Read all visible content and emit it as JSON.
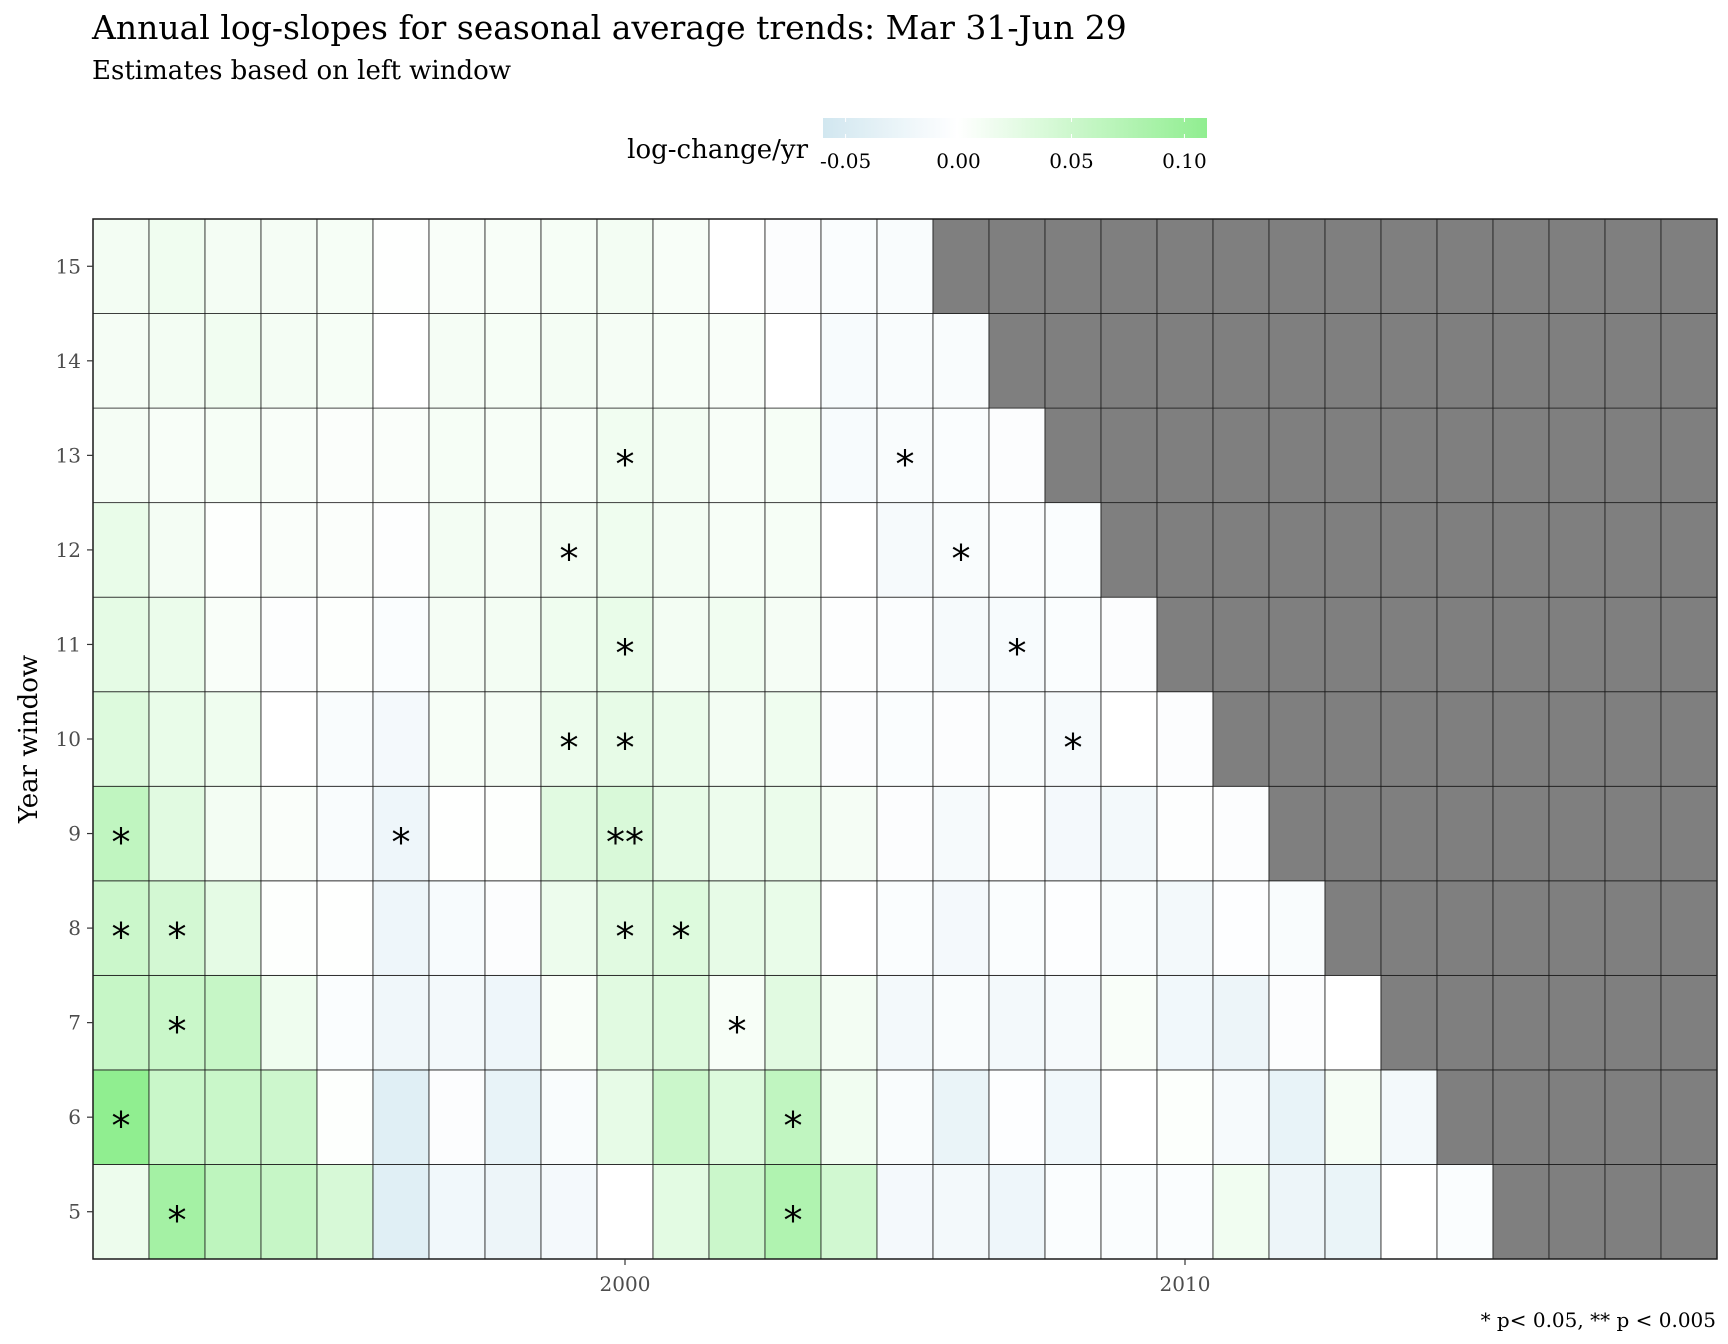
{
  "title": "Annual log-slopes for seasonal average trends: Mar 31-Jun 29",
  "subtitle": "Estimates based on left window",
  "caption": "* p< 0.05, ** p < 0.005",
  "colors": {
    "negative": "#d1e7f0",
    "zero": "#ffffff",
    "positive": "#90ee90",
    "na": "#7f7f7f",
    "grid": "#1a1a1a"
  },
  "chart_data": {
    "type": "heatmap",
    "title": "Annual log-slopes for seasonal average trends: Mar 31-Jun 29",
    "subtitle": "Estimates based on left window",
    "xlabel": "",
    "ylabel": "Year window",
    "legend": {
      "title": "log-change/yr",
      "position": "top",
      "range": [
        -0.06,
        0.11
      ],
      "ticks": [
        -0.05,
        0.0,
        0.05,
        0.1
      ],
      "tick_labels": [
        "-0.05",
        "0.00",
        "0.05",
        "0.10"
      ]
    },
    "x_range": [
      1991,
      2019
    ],
    "x_ticks": [
      2000,
      2010
    ],
    "x_tick_labels": [
      "2000",
      "2010"
    ],
    "y_windows": [
      5,
      6,
      7,
      8,
      9,
      10,
      11,
      12,
      13,
      14,
      15
    ],
    "y_tick_labels": [
      "5",
      "6",
      "7",
      "8",
      "9",
      "10",
      "11",
      "12",
      "13",
      "14",
      "15"
    ],
    "years": [
      1991,
      1992,
      1993,
      1994,
      1995,
      1996,
      1997,
      1998,
      1999,
      2000,
      2001,
      2002,
      2003,
      2004,
      2005,
      2006,
      2007,
      2008,
      2009,
      2010,
      2011,
      2012,
      2013,
      2014,
      2015,
      2016,
      2017,
      2018,
      2019
    ],
    "values": {
      "15": [
        0.012,
        0.015,
        0.011,
        0.01,
        0.009,
        0.001,
        0.006,
        0.007,
        0.009,
        0.012,
        0.007,
        0.0,
        -0.004,
        -0.006,
        -0.008,
        null,
        null,
        null,
        null,
        null,
        null,
        null,
        null,
        null,
        null,
        null,
        null,
        null,
        null
      ],
      "14": [
        0.01,
        0.012,
        0.014,
        0.011,
        0.009,
        0.0,
        0.01,
        0.009,
        0.011,
        0.01,
        0.008,
        0.006,
        0.0,
        -0.01,
        -0.008,
        -0.008,
        null,
        null,
        null,
        null,
        null,
        null,
        null,
        null,
        null,
        null,
        null,
        null,
        null
      ],
      "13": [
        0.01,
        0.007,
        0.009,
        0.006,
        0.004,
        0.005,
        0.009,
        0.008,
        0.008,
        0.014,
        0.012,
        0.007,
        0.009,
        -0.01,
        -0.008,
        -0.006,
        -0.004,
        null,
        null,
        null,
        null,
        null,
        null,
        null,
        null,
        null,
        null,
        null,
        null
      ],
      "12": [
        0.022,
        0.011,
        0.002,
        0.005,
        0.004,
        -0.003,
        0.012,
        0.01,
        0.012,
        0.016,
        0.012,
        0.008,
        0.009,
        0.0,
        -0.012,
        -0.008,
        -0.005,
        -0.006,
        null,
        null,
        null,
        null,
        null,
        null,
        null,
        null,
        null,
        null,
        null
      ],
      "11": [
        0.026,
        0.02,
        0.006,
        -0.003,
        0.002,
        -0.006,
        0.01,
        0.012,
        0.016,
        0.022,
        0.012,
        0.014,
        0.01,
        -0.003,
        -0.005,
        -0.012,
        -0.01,
        -0.006,
        -0.004,
        null,
        null,
        null,
        null,
        null,
        null,
        null,
        null,
        null,
        null
      ],
      "10": [
        0.034,
        0.022,
        0.016,
        0.0,
        -0.008,
        -0.014,
        0.008,
        0.01,
        0.018,
        0.024,
        0.02,
        0.012,
        0.016,
        -0.004,
        -0.006,
        -0.004,
        -0.008,
        -0.012,
        0.0,
        -0.004,
        null,
        null,
        null,
        null,
        null,
        null,
        null,
        null,
        null
      ],
      "9": [
        0.062,
        0.03,
        0.012,
        0.005,
        -0.008,
        -0.022,
        0.001,
        0.002,
        0.03,
        0.038,
        0.024,
        0.018,
        0.02,
        0.01,
        -0.004,
        -0.012,
        -0.003,
        -0.014,
        -0.016,
        -0.003,
        -0.004,
        null,
        null,
        null,
        null,
        null,
        null,
        null,
        null
      ],
      "8": [
        0.052,
        0.044,
        0.026,
        0.002,
        0.001,
        -0.022,
        -0.01,
        -0.004,
        0.018,
        0.03,
        0.034,
        0.024,
        0.022,
        0.0,
        -0.006,
        -0.014,
        -0.006,
        -0.002,
        -0.008,
        -0.016,
        -0.002,
        -0.008,
        null,
        null,
        null,
        null,
        null,
        null,
        null
      ],
      "7": [
        0.056,
        0.054,
        0.056,
        0.016,
        -0.006,
        -0.02,
        -0.016,
        -0.022,
        0.006,
        0.03,
        0.034,
        0.008,
        0.03,
        0.012,
        -0.016,
        -0.008,
        -0.016,
        -0.012,
        0.006,
        -0.018,
        -0.024,
        -0.004,
        0.0,
        null,
        null,
        null,
        null,
        null,
        null
      ],
      "6": [
        0.11,
        0.054,
        0.054,
        0.05,
        0.002,
        -0.04,
        -0.004,
        -0.03,
        -0.008,
        0.024,
        0.052,
        0.034,
        0.062,
        0.014,
        -0.008,
        -0.028,
        -0.002,
        -0.018,
        0.0,
        0.003,
        -0.012,
        -0.03,
        0.01,
        -0.016,
        null,
        null,
        null,
        null,
        null
      ],
      "5": [
        0.018,
        0.09,
        0.064,
        0.056,
        0.04,
        -0.04,
        -0.018,
        -0.024,
        -0.014,
        0.0,
        0.028,
        0.052,
        0.078,
        0.046,
        -0.014,
        -0.016,
        -0.022,
        -0.006,
        -0.006,
        -0.006,
        0.014,
        -0.024,
        -0.028,
        0.0,
        -0.006,
        null,
        null,
        null,
        null
      ]
    },
    "significance": [
      {
        "year": 2000,
        "window": 13,
        "label": "*"
      },
      {
        "year": 2005,
        "window": 13,
        "label": "*"
      },
      {
        "year": 1999,
        "window": 12,
        "label": "*"
      },
      {
        "year": 2006,
        "window": 12,
        "label": "*"
      },
      {
        "year": 2000,
        "window": 11,
        "label": "*"
      },
      {
        "year": 2007,
        "window": 11,
        "label": "*"
      },
      {
        "year": 1999,
        "window": 10,
        "label": "*"
      },
      {
        "year": 2000,
        "window": 10,
        "label": "*"
      },
      {
        "year": 2008,
        "window": 10,
        "label": "*"
      },
      {
        "year": 1991,
        "window": 9,
        "label": "*"
      },
      {
        "year": 1996,
        "window": 9,
        "label": "*"
      },
      {
        "year": 2000,
        "window": 9,
        "label": "**"
      },
      {
        "year": 1991,
        "window": 8,
        "label": "*"
      },
      {
        "year": 1992,
        "window": 8,
        "label": "*"
      },
      {
        "year": 2000,
        "window": 8,
        "label": "*"
      },
      {
        "year": 2001,
        "window": 8,
        "label": "*"
      },
      {
        "year": 1992,
        "window": 7,
        "label": "*"
      },
      {
        "year": 2002,
        "window": 7,
        "label": "*"
      },
      {
        "year": 1991,
        "window": 6,
        "label": "*"
      },
      {
        "year": 2003,
        "window": 6,
        "label": "*"
      },
      {
        "year": 1992,
        "window": 5,
        "label": "*"
      },
      {
        "year": 2003,
        "window": 5,
        "label": "*"
      }
    ]
  }
}
